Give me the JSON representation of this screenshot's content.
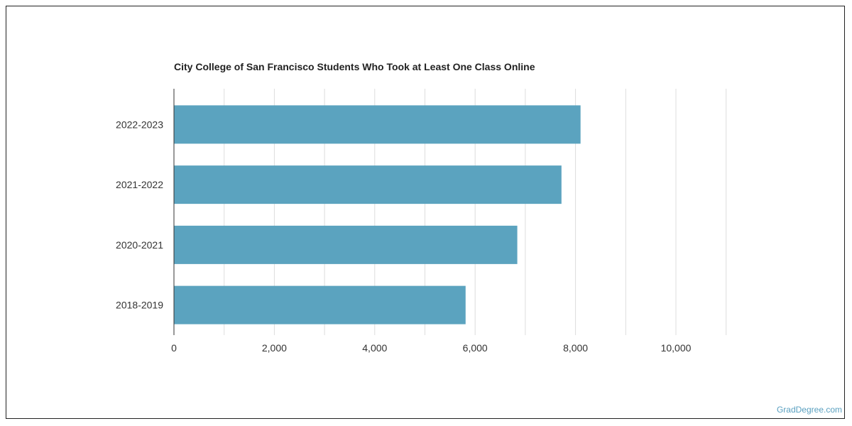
{
  "chart_data": {
    "type": "bar",
    "orientation": "horizontal",
    "title": "City College of San Francisco Students Who Took at Least One Class Online",
    "categories": [
      "2022-2023",
      "2021-2022",
      "2020-2021",
      "2018-2019"
    ],
    "values": [
      8100,
      7720,
      6840,
      5810
    ],
    "xlim": [
      0,
      10000
    ],
    "xticks": [
      0,
      2000,
      4000,
      6000,
      8000,
      10000
    ],
    "xtick_labels": [
      "0",
      "2,000",
      "4,000",
      "6,000",
      "8,000",
      "10,000"
    ],
    "grid": true,
    "bar_color": "#5ba3bf"
  },
  "credit": "GradDegree.com"
}
